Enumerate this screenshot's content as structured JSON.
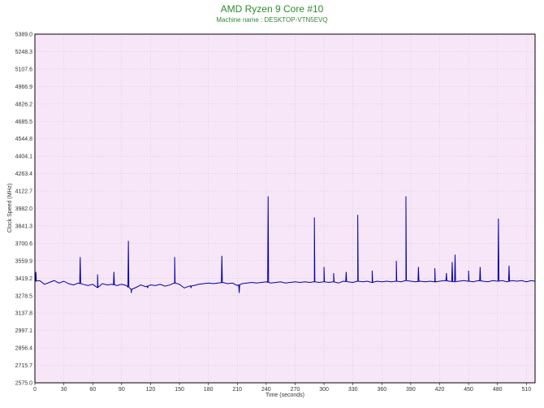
{
  "chart_data": {
    "type": "line",
    "title": "AMD Ryzen 9 Core #10",
    "subtitle": "Machine name : DESKTOP-VTN5EVQ",
    "xlabel": "Time (seconds)",
    "ylabel": "Clock Speed (MHz)",
    "xlim": [
      0,
      519
    ],
    "ylim": [
      2575.0,
      5389.0
    ],
    "xticks": [
      0,
      30,
      60,
      90,
      120,
      150,
      180,
      210,
      240,
      270,
      300,
      330,
      360,
      390,
      420,
      450,
      480,
      510
    ],
    "yticks": [
      "2575.0",
      "2715.7",
      "2856.4",
      "2997.1",
      "3137.8",
      "3278.5",
      "3419.2",
      "3559.9",
      "3700.6",
      "3841.3",
      "3982.0",
      "4122.7",
      "4263.4",
      "4404.1",
      "4544.8",
      "4685.5",
      "4826.2",
      "4966.9",
      "5107.6",
      "5248.3",
      "5389.0"
    ],
    "grid": true,
    "legend": "none",
    "series": [
      {
        "color": "#0000aa",
        "baseline": [
          [
            0,
            3395
          ],
          [
            5,
            3400
          ],
          [
            10,
            3370
          ],
          [
            15,
            3385
          ],
          [
            20,
            3400
          ],
          [
            25,
            3380
          ],
          [
            30,
            3395
          ],
          [
            35,
            3375
          ],
          [
            40,
            3365
          ],
          [
            45,
            3380
          ],
          [
            50,
            3370
          ],
          [
            55,
            3360
          ],
          [
            60,
            3370
          ],
          [
            65,
            3345
          ],
          [
            70,
            3375
          ],
          [
            75,
            3365
          ],
          [
            80,
            3370
          ],
          [
            85,
            3360
          ],
          [
            90,
            3370
          ],
          [
            95,
            3360
          ],
          [
            100,
            3330
          ],
          [
            105,
            3345
          ],
          [
            110,
            3365
          ],
          [
            115,
            3350
          ],
          [
            120,
            3365
          ],
          [
            125,
            3360
          ],
          [
            130,
            3370
          ],
          [
            135,
            3355
          ],
          [
            140,
            3365
          ],
          [
            145,
            3380
          ],
          [
            150,
            3370
          ],
          [
            155,
            3340
          ],
          [
            160,
            3355
          ],
          [
            165,
            3360
          ],
          [
            170,
            3370
          ],
          [
            175,
            3375
          ],
          [
            180,
            3380
          ],
          [
            185,
            3375
          ],
          [
            190,
            3380
          ],
          [
            195,
            3385
          ],
          [
            200,
            3375
          ],
          [
            205,
            3380
          ],
          [
            210,
            3360
          ],
          [
            215,
            3375
          ],
          [
            220,
            3380
          ],
          [
            225,
            3385
          ],
          [
            230,
            3380
          ],
          [
            235,
            3385
          ],
          [
            240,
            3390
          ],
          [
            245,
            3380
          ],
          [
            250,
            3385
          ],
          [
            255,
            3390
          ],
          [
            260,
            3380
          ],
          [
            265,
            3385
          ],
          [
            270,
            3390
          ],
          [
            275,
            3385
          ],
          [
            280,
            3390
          ],
          [
            285,
            3385
          ],
          [
            290,
            3390
          ],
          [
            295,
            3385
          ],
          [
            300,
            3390
          ],
          [
            305,
            3385
          ],
          [
            310,
            3390
          ],
          [
            315,
            3380
          ],
          [
            320,
            3395
          ],
          [
            325,
            3390
          ],
          [
            330,
            3385
          ],
          [
            335,
            3395
          ],
          [
            340,
            3390
          ],
          [
            345,
            3395
          ],
          [
            350,
            3385
          ],
          [
            355,
            3395
          ],
          [
            360,
            3390
          ],
          [
            365,
            3395
          ],
          [
            370,
            3390
          ],
          [
            375,
            3395
          ],
          [
            380,
            3390
          ],
          [
            385,
            3400
          ],
          [
            390,
            3395
          ],
          [
            395,
            3390
          ],
          [
            400,
            3395
          ],
          [
            405,
            3390
          ],
          [
            410,
            3395
          ],
          [
            415,
            3390
          ],
          [
            420,
            3395
          ],
          [
            425,
            3400
          ],
          [
            430,
            3395
          ],
          [
            435,
            3390
          ],
          [
            440,
            3395
          ],
          [
            445,
            3400
          ],
          [
            450,
            3395
          ],
          [
            455,
            3390
          ],
          [
            460,
            3400
          ],
          [
            465,
            3395
          ],
          [
            470,
            3390
          ],
          [
            475,
            3400
          ],
          [
            480,
            3395
          ],
          [
            485,
            3400
          ],
          [
            490,
            3390
          ],
          [
            495,
            3400
          ],
          [
            500,
            3395
          ],
          [
            505,
            3400
          ],
          [
            510,
            3390
          ],
          [
            515,
            3400
          ],
          [
            519,
            3395
          ]
        ],
        "spikes": [
          [
            1,
            3470
          ],
          [
            47,
            3590
          ],
          [
            65,
            3450
          ],
          [
            82,
            3470
          ],
          [
            97,
            3720
          ],
          [
            100,
            3300
          ],
          [
            117,
            3340
          ],
          [
            145,
            3590
          ],
          [
            162,
            3340
          ],
          [
            194,
            3600
          ],
          [
            212,
            3300
          ],
          [
            242,
            4080
          ],
          [
            290,
            3910
          ],
          [
            300,
            3510
          ],
          [
            310,
            3460
          ],
          [
            323,
            3470
          ],
          [
            335,
            3930
          ],
          [
            350,
            3480
          ],
          [
            375,
            3560
          ],
          [
            385,
            4080
          ],
          [
            398,
            3510
          ],
          [
            415,
            3500
          ],
          [
            427,
            3460
          ],
          [
            433,
            3550
          ],
          [
            436,
            3610
          ],
          [
            450,
            3480
          ],
          [
            462,
            3510
          ],
          [
            481,
            3900
          ],
          [
            492,
            3520
          ]
        ]
      }
    ]
  }
}
